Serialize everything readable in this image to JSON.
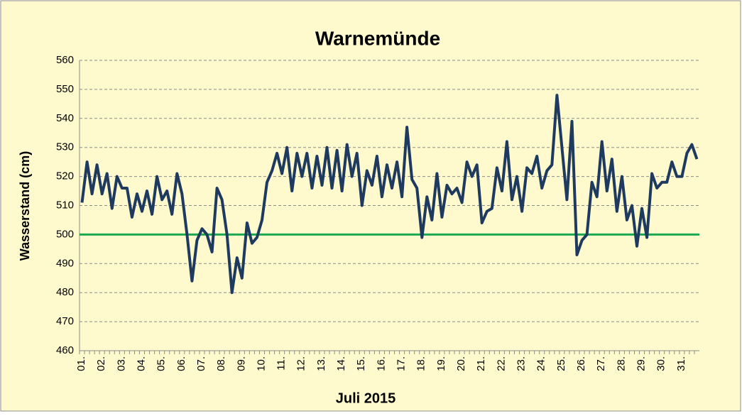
{
  "chart_data": {
    "type": "line",
    "title": "Warnemünde",
    "x_label": "Juli 2015",
    "y_label": "Wasserstand (cm)",
    "categories": [
      "01.",
      null,
      null,
      null,
      "02.",
      null,
      null,
      null,
      "03.",
      null,
      null,
      null,
      "04.",
      null,
      null,
      null,
      "05.",
      null,
      null,
      null,
      "06.",
      null,
      null,
      null,
      "07.",
      null,
      null,
      null,
      "08.",
      null,
      null,
      null,
      "09.",
      null,
      null,
      null,
      "10.",
      null,
      null,
      null,
      "11.",
      null,
      null,
      null,
      "12.",
      null,
      null,
      null,
      "13.",
      null,
      null,
      null,
      "14.",
      null,
      null,
      null,
      "15.",
      null,
      null,
      null,
      "16.",
      null,
      null,
      null,
      "17.",
      null,
      null,
      null,
      "18.",
      null,
      null,
      null,
      "19.",
      null,
      null,
      null,
      "20.",
      null,
      null,
      null,
      "21.",
      null,
      null,
      null,
      "22.",
      null,
      null,
      null,
      "23.",
      null,
      null,
      null,
      "24.",
      null,
      null,
      null,
      "25.",
      null,
      null,
      null,
      "26.",
      null,
      null,
      null,
      "27.",
      null,
      null,
      null,
      "28.",
      null,
      null,
      null,
      "29.",
      null,
      null,
      null,
      "30.",
      null,
      null,
      null,
      "31.",
      null,
      null,
      null
    ],
    "series": [
      {
        "name": "Wasserstand",
        "color": "#1f3a5f",
        "values": [
          511,
          525,
          514,
          524,
          514,
          521,
          509,
          520,
          516,
          516,
          506,
          514,
          508,
          515,
          507,
          520,
          512,
          515,
          507,
          521,
          514,
          500,
          484,
          498,
          502,
          500,
          494,
          516,
          512,
          500,
          480,
          492,
          485,
          504,
          497,
          499,
          505,
          518,
          522,
          528,
          521,
          530,
          515,
          528,
          520,
          528,
          516,
          527,
          517,
          530,
          516,
          529,
          515,
          531,
          520,
          528,
          510,
          522,
          517,
          527,
          513,
          524,
          516,
          525,
          513,
          537,
          519,
          516,
          499,
          513,
          505,
          521,
          506,
          517,
          514,
          516,
          511,
          525,
          520,
          524,
          504,
          508,
          509,
          523,
          515,
          532,
          512,
          520,
          508,
          523,
          521,
          527,
          516,
          522,
          524,
          548,
          530,
          512,
          539,
          493,
          498,
          500,
          518,
          513,
          532,
          515,
          526,
          508,
          520,
          505,
          510,
          496,
          509,
          499,
          521,
          516,
          518,
          518,
          525,
          520,
          520,
          528,
          531,
          526
        ]
      }
    ],
    "reference_line": {
      "value": 500,
      "color": "#1aa850"
    },
    "ylim": [
      460,
      560
    ],
    "yticks": [
      460,
      470,
      480,
      490,
      500,
      510,
      520,
      530,
      540,
      550,
      560
    ],
    "grid": true
  }
}
